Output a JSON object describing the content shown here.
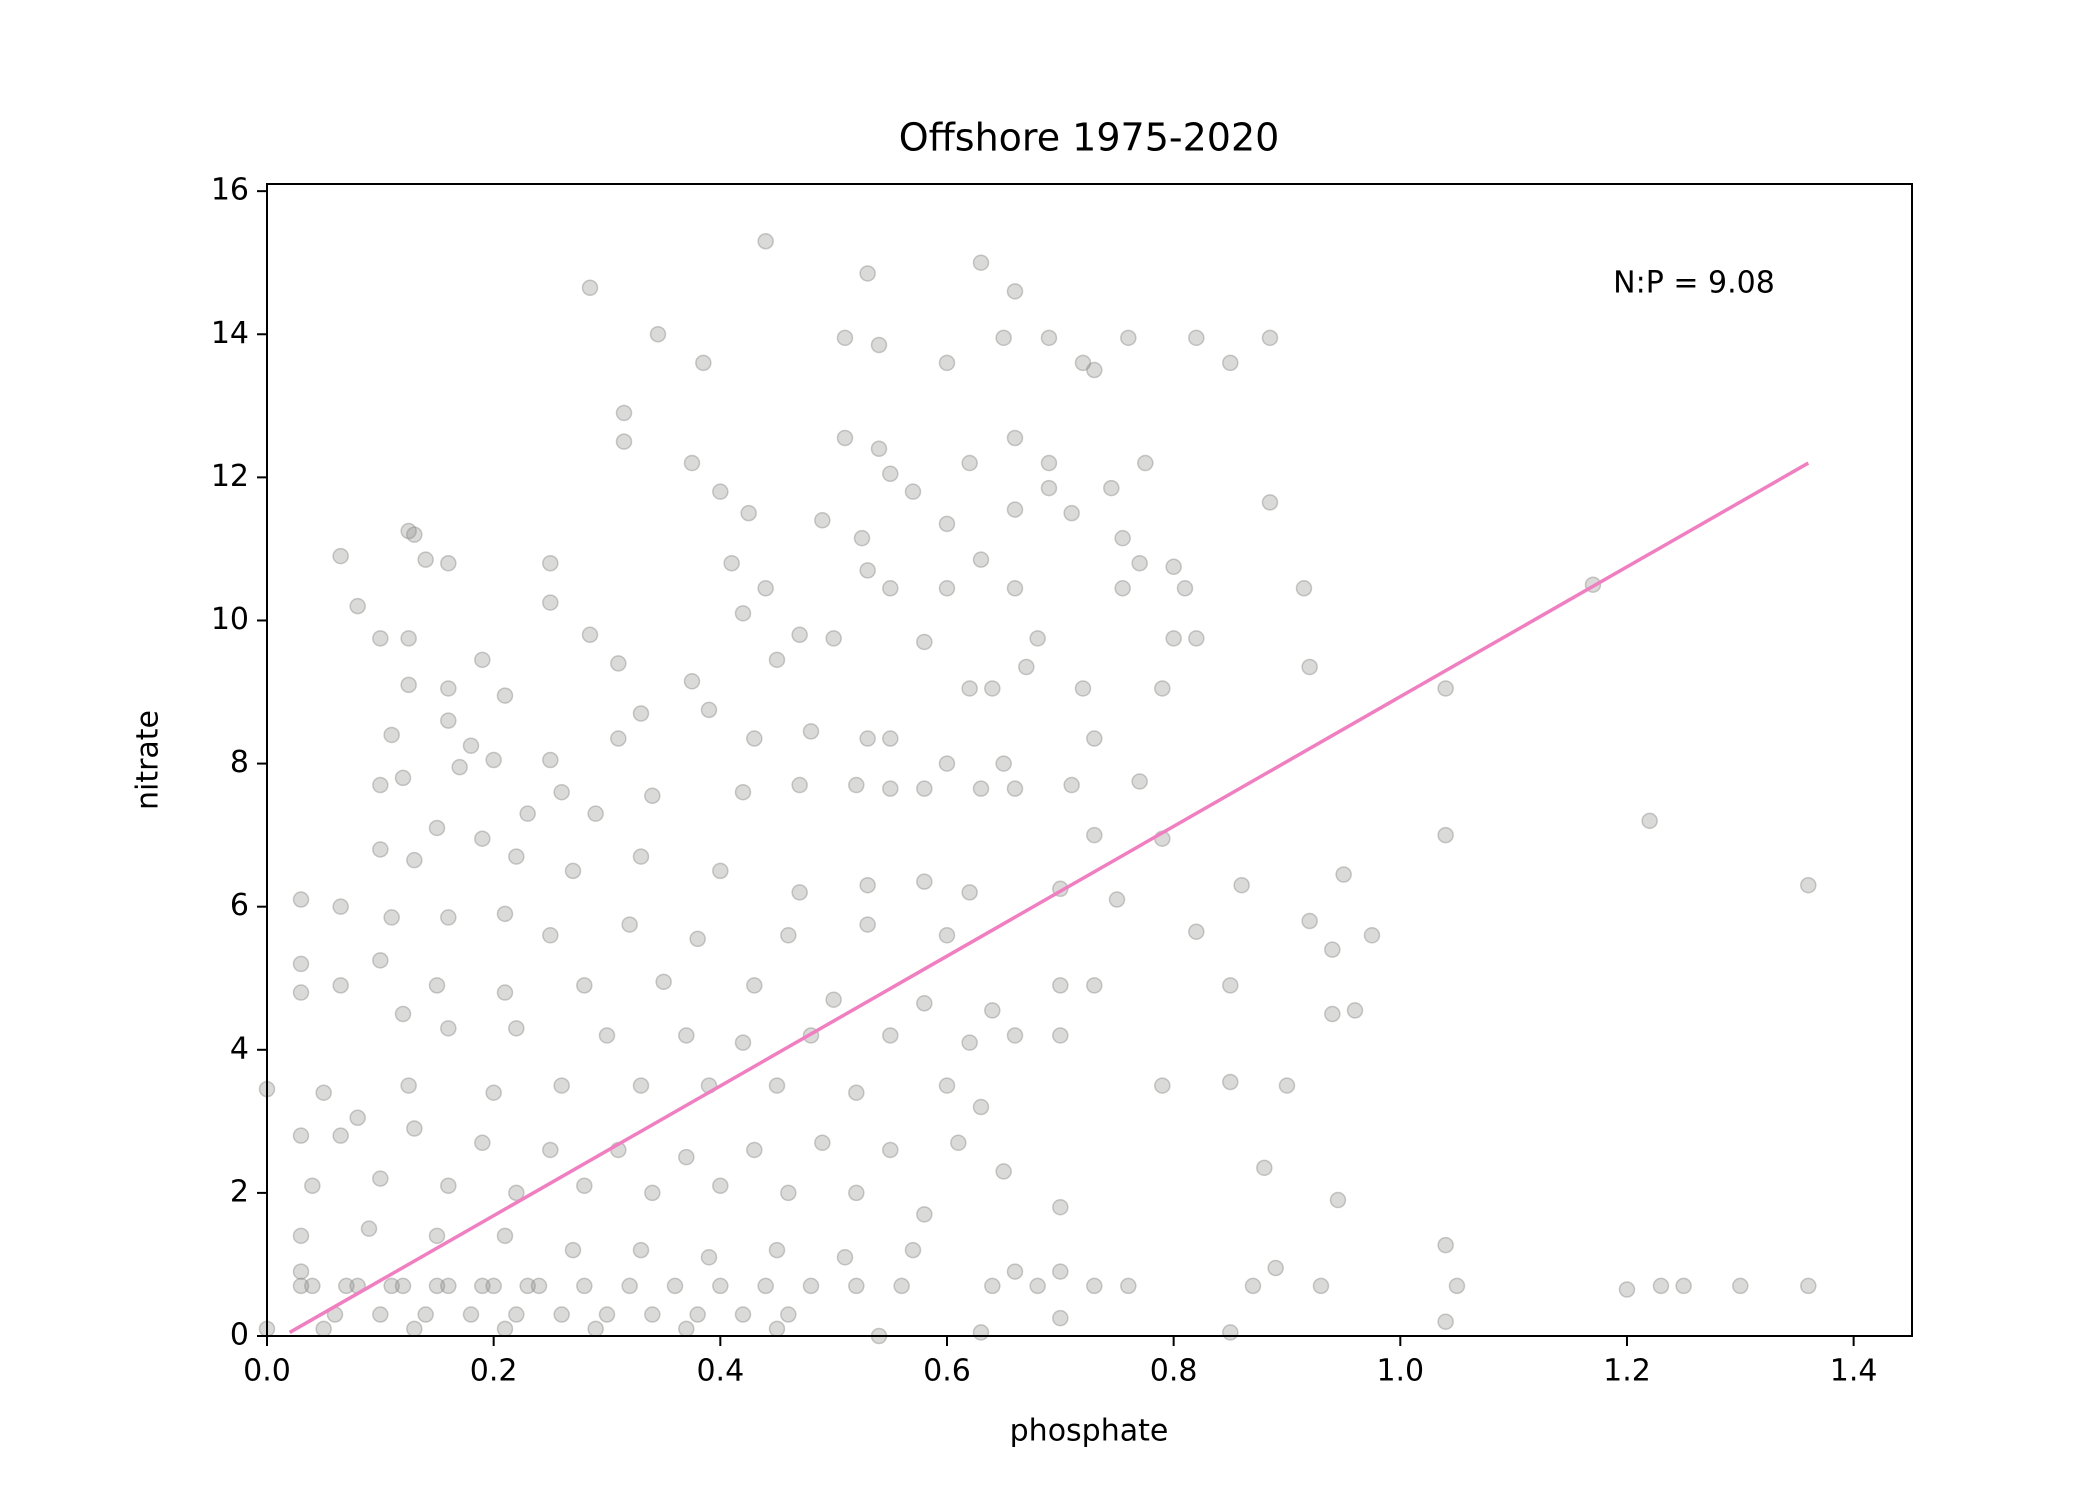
{
  "chart_data": {
    "type": "scatter",
    "title": "Offshore 1975-2020",
    "xlabel": "phosphate",
    "ylabel": "nitrate",
    "annotation": "N:P = 9.08",
    "color": "#8c8c88",
    "x": [
      0.44,
      0.53,
      0.285,
      0.63,
      0.66,
      0.345,
      0.51,
      0.54,
      0.6,
      0.65,
      0.69,
      0.72,
      0.73,
      0.76,
      0.82,
      0.85,
      0.885,
      0.385,
      0.315,
      0.315,
      0.51,
      0.54,
      0.55,
      0.62,
      0.66,
      0.69,
      0.775,
      0.375,
      0.4,
      0.425,
      0.49,
      0.525,
      0.57,
      0.6,
      0.66,
      0.69,
      0.71,
      0.745,
      0.755,
      0.885,
      0.125,
      0.13,
      0.14,
      0.16,
      0.065,
      0.25,
      0.41,
      0.53,
      0.63,
      0.77,
      0.8,
      1.17,
      0.08,
      0.1,
      0.125,
      0.25,
      0.285,
      0.42,
      0.44,
      0.5,
      0.55,
      0.6,
      0.66,
      0.68,
      0.755,
      0.81,
      0.915,
      0.8,
      0.82,
      0.92,
      0.79,
      1.04,
      0.125,
      0.16,
      0.19,
      0.21,
      0.31,
      0.375,
      0.45,
      0.47,
      0.58,
      0.62,
      0.64,
      0.67,
      0.72,
      0.11,
      0.16,
      0.18,
      0.2,
      0.25,
      0.31,
      0.33,
      0.39,
      0.43,
      0.48,
      0.53,
      0.55,
      0.6,
      0.65,
      0.73,
      0.1,
      0.12,
      0.17,
      0.23,
      0.26,
      0.29,
      0.34,
      0.42,
      0.47,
      0.52,
      0.55,
      0.58,
      0.63,
      0.66,
      0.71,
      0.77,
      0.79,
      0.73,
      1.04,
      1.22,
      0.1,
      0.13,
      0.15,
      0.19,
      0.22,
      0.27,
      0.33,
      0.4,
      0.47,
      0.53,
      0.58,
      0.62,
      0.7,
      0.75,
      0.86,
      0.95,
      1.36,
      0.03,
      0.065,
      0.11,
      0.16,
      0.21,
      0.25,
      0.32,
      0.38,
      0.46,
      0.53,
      0.6,
      0.82,
      0.92,
      0.94,
      0.975,
      0.03,
      0.065,
      0.1,
      0.15,
      0.21,
      0.28,
      0.35,
      0.43,
      0.5,
      0.58,
      0.64,
      0.7,
      0.73,
      0.85,
      0.94,
      0.96,
      0.03,
      0.12,
      0.16,
      0.22,
      0.3,
      0.37,
      0.42,
      0.48,
      0.55,
      0.62,
      0.66,
      0.7,
      0.0,
      0.05,
      0.08,
      0.125,
      0.2,
      0.26,
      0.33,
      0.39,
      0.45,
      0.52,
      0.6,
      0.63,
      0.79,
      0.85,
      0.9,
      0.03,
      0.065,
      0.13,
      0.19,
      0.25,
      0.31,
      0.37,
      0.43,
      0.49,
      0.55,
      0.61,
      0.04,
      0.1,
      0.16,
      0.22,
      0.28,
      0.34,
      0.4,
      0.46,
      0.52,
      0.58,
      0.65,
      0.7,
      0.88,
      0.945,
      0.03,
      0.09,
      0.15,
      0.21,
      0.27,
      0.33,
      0.39,
      0.45,
      0.51,
      0.57,
      0.03,
      0.66,
      0.7,
      0.89,
      1.04,
      0.64,
      0.68,
      0.73,
      0.76,
      0.87,
      0.93,
      1.05,
      1.2,
      1.23,
      1.25,
      1.3,
      1.36,
      0.54,
      0.63,
      0.7,
      0.85,
      1.04,
      0.0,
      0.04,
      0.08,
      0.12,
      0.16,
      0.2,
      0.24,
      0.28,
      0.32,
      0.36,
      0.4,
      0.44,
      0.48,
      0.52,
      0.56,
      0.06,
      0.1,
      0.14,
      0.18,
      0.22,
      0.26,
      0.3,
      0.34,
      0.38,
      0.42,
      0.46,
      0.05,
      0.13,
      0.21,
      0.29,
      0.37,
      0.45,
      0.03,
      0.07,
      0.11,
      0.15,
      0.19,
      0.23
    ],
    "values": [
      15.3,
      14.85,
      14.65,
      15.0,
      14.6,
      14.0,
      13.95,
      13.85,
      13.6,
      13.95,
      13.95,
      13.6,
      13.5,
      13.95,
      13.95,
      13.6,
      13.95,
      13.6,
      12.9,
      12.5,
      12.55,
      12.4,
      12.05,
      12.2,
      12.55,
      12.2,
      12.2,
      12.2,
      11.8,
      11.5,
      11.4,
      11.15,
      11.8,
      11.35,
      11.55,
      11.85,
      11.5,
      11.85,
      11.15,
      11.65,
      11.25,
      11.2,
      10.85,
      10.8,
      10.9,
      10.8,
      10.8,
      10.7,
      10.85,
      10.8,
      10.75,
      10.5,
      10.2,
      9.75,
      9.75,
      10.25,
      9.8,
      10.1,
      10.45,
      9.75,
      10.45,
      10.45,
      10.45,
      9.75,
      10.45,
      10.45,
      10.45,
      9.75,
      9.75,
      9.35,
      9.05,
      9.05,
      9.1,
      9.05,
      9.45,
      8.95,
      9.4,
      9.15,
      9.45,
      9.8,
      9.7,
      9.05,
      9.05,
      9.35,
      9.05,
      8.4,
      8.6,
      8.25,
      8.05,
      8.05,
      8.35,
      8.7,
      8.75,
      8.35,
      8.45,
      8.35,
      8.35,
      8.0,
      8.0,
      8.35,
      7.7,
      7.8,
      7.95,
      7.3,
      7.6,
      7.3,
      7.55,
      7.6,
      7.7,
      7.7,
      7.65,
      7.65,
      7.65,
      7.65,
      7.7,
      7.75,
      6.95,
      7.0,
      7.0,
      7.2,
      6.8,
      6.65,
      7.1,
      6.95,
      6.7,
      6.5,
      6.7,
      6.5,
      6.2,
      6.3,
      6.35,
      6.2,
      6.25,
      6.1,
      6.3,
      6.45,
      6.3,
      6.1,
      6.0,
      5.85,
      5.85,
      5.9,
      5.6,
      5.75,
      5.55,
      5.6,
      5.75,
      5.6,
      5.65,
      5.8,
      5.4,
      5.6,
      5.2,
      4.9,
      5.25,
      4.9,
      4.8,
      4.9,
      4.95,
      4.9,
      4.7,
      4.65,
      4.55,
      4.9,
      4.9,
      4.9,
      4.5,
      4.55,
      4.8,
      4.5,
      4.3,
      4.3,
      4.2,
      4.2,
      4.1,
      4.2,
      4.2,
      4.1,
      4.2,
      4.2,
      3.45,
      3.4,
      3.05,
      3.5,
      3.4,
      3.5,
      3.5,
      3.5,
      3.5,
      3.4,
      3.5,
      3.2,
      3.5,
      3.55,
      3.5,
      2.8,
      2.8,
      2.9,
      2.7,
      2.6,
      2.6,
      2.5,
      2.6,
      2.7,
      2.6,
      2.7,
      2.1,
      2.2,
      2.1,
      2.0,
      2.1,
      2.0,
      2.1,
      2.0,
      2.0,
      1.7,
      2.3,
      1.8,
      2.35,
      1.9,
      1.4,
      1.5,
      1.4,
      1.4,
      1.2,
      1.2,
      1.1,
      1.2,
      1.1,
      1.2,
      0.9,
      0.9,
      0.9,
      0.95,
      1.27,
      0.7,
      0.7,
      0.7,
      0.7,
      0.7,
      0.7,
      0.7,
      0.65,
      0.7,
      0.7,
      0.7,
      0.7,
      0.0,
      0.05,
      0.25,
      0.05,
      0.2,
      0.1,
      0.7,
      0.7,
      0.7,
      0.7,
      0.7,
      0.7,
      0.7,
      0.7,
      0.7,
      0.7,
      0.7,
      0.7,
      0.7,
      0.7,
      0.3,
      0.3,
      0.3,
      0.3,
      0.3,
      0.3,
      0.3,
      0.3,
      0.3,
      0.3,
      0.3,
      0.1,
      0.1,
      0.1,
      0.1,
      0.1,
      0.1,
      0.7,
      0.7,
      0.7,
      0.7,
      0.7,
      0.7
    ],
    "fit": {
      "x": [
        0.02,
        1.36
      ],
      "values": [
        0.05,
        12.2
      ],
      "color": "#f07fc1"
    },
    "xlim": [
      0,
      1.4515
    ],
    "ylim": [
      0,
      16.1
    ],
    "xticks": [
      {
        "value": 0,
        "label": "0.0"
      },
      0.2,
      0.4,
      0.6,
      0.8,
      {
        "value": 1,
        "label": "1.0"
      },
      1.2,
      1.4
    ],
    "yticks": [
      0,
      2,
      4,
      6,
      8,
      10,
      12,
      14,
      16
    ]
  }
}
